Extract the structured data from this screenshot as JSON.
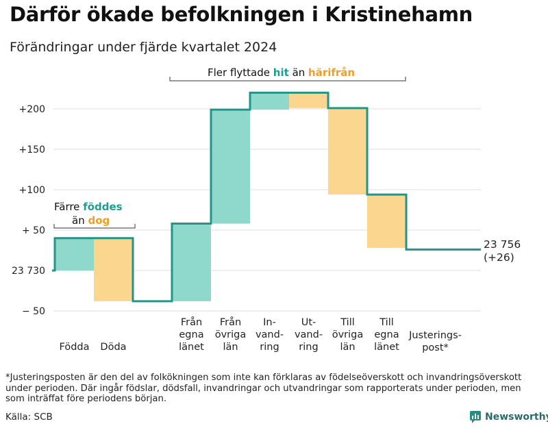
{
  "title": "Därför ökade befolkningen i Kristinehamn",
  "subtitle": "Förändringar under fjärde kvartalet 2024",
  "chart_data": {
    "type": "waterfall",
    "baseline_value": 23730,
    "baseline_label": "23 730",
    "ylim": [
      -50,
      220
    ],
    "yticks": [
      {
        "value": 200,
        "label": "+200"
      },
      {
        "value": 150,
        "label": "+150"
      },
      {
        "value": 100,
        "label": "+100"
      },
      {
        "value": 50,
        "label": "+ 50"
      },
      {
        "value": 0,
        "label": "23 730"
      },
      {
        "value": -50,
        "label": "−  50"
      }
    ],
    "steps": [
      {
        "category": "Födda",
        "lines": [
          "Födda"
        ],
        "start": 0,
        "end": 40,
        "change": 40,
        "kind": "in"
      },
      {
        "category": "Döda",
        "lines": [
          "Döda"
        ],
        "start": 40,
        "end": -38,
        "change": -78,
        "kind": "out"
      },
      {
        "category": "",
        "lines": [],
        "start": -38,
        "end": -38,
        "change": 0,
        "kind": "gap"
      },
      {
        "category": "Från egna länet",
        "lines": [
          "Från",
          "egna",
          "länet"
        ],
        "start": -38,
        "end": 58,
        "change": 96,
        "kind": "in"
      },
      {
        "category": "Från övriga län",
        "lines": [
          "Från",
          "övriga",
          "län"
        ],
        "start": 58,
        "end": 199,
        "change": 141,
        "kind": "in"
      },
      {
        "category": "In-vandring",
        "lines": [
          "In-",
          "vand-",
          "ring"
        ],
        "start": 199,
        "end": 220,
        "change": 21,
        "kind": "in"
      },
      {
        "category": "Ut-vandring",
        "lines": [
          "Ut-",
          "vand-",
          "ring"
        ],
        "start": 220,
        "end": 201,
        "change": -19,
        "kind": "out"
      },
      {
        "category": "Till övriga län",
        "lines": [
          "Till",
          "övriga",
          "län"
        ],
        "start": 201,
        "end": 94,
        "change": -107,
        "kind": "out"
      },
      {
        "category": "Till egna länet",
        "lines": [
          "Till",
          "egna",
          "länet"
        ],
        "start": 94,
        "end": 28,
        "change": -66,
        "kind": "out"
      },
      {
        "category": "Justeringspost*",
        "lines": [
          "Justerings-",
          "post*"
        ],
        "start": 28,
        "end": 26,
        "change": -2,
        "kind": "adjust"
      }
    ],
    "end_label_lines": [
      "23 756",
      "(+26)"
    ],
    "final_value": 23756,
    "net_change": 26,
    "colors": {
      "in": "#8ed8cc",
      "out": "#fbd68f",
      "line": "#23948a",
      "hit": "#1a9e8e",
      "harifran": "#f0a020"
    },
    "annotations": {
      "left": {
        "prefix": "Färre",
        "colored_in": "föddes",
        "mid": "än",
        "colored_out": "dog"
      },
      "top": {
        "prefix": "Fler flyttade",
        "colored_in": "hit",
        "mid": "än",
        "colored_out": "härifrån"
      }
    }
  },
  "footnote": "*Justeringsposten är den del av folkökningen som inte kan förklaras av födelseöverskott och invandringsöverskott under perioden. Där ingår födslar, dödsfall, invandringar och utvandringar som rapporterats under perioden, men som inträffat före periodens början.",
  "source": "Källa: SCB",
  "brand": "Newsworthy"
}
